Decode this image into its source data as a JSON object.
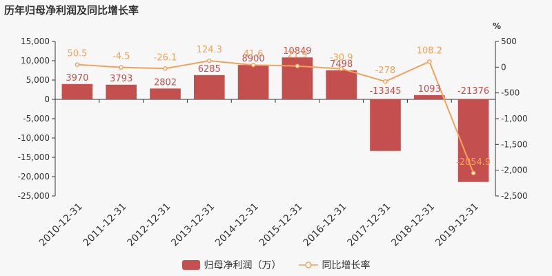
{
  "title": "历年归母净利润及同比增长率",
  "colors": {
    "bar": "#c3504e",
    "line": "#f4a259",
    "bar_label": "#c3504e",
    "line_label": "#f4a259",
    "axis_text": "#333333",
    "grid": "#e3e3e3"
  },
  "legend": {
    "bar_label": "归母净利润（万）",
    "line_label": "同比增长率"
  },
  "chart_data": {
    "type": "bar",
    "title": "历年归母净利润及同比增长率",
    "categories": [
      "2010-12-31",
      "2011-12-31",
      "2012-12-31",
      "2013-12-31",
      "2014-12-31",
      "2015-12-31",
      "2016-12-31",
      "2017-12-31",
      "2018-12-31",
      "2019-12-31"
    ],
    "series": [
      {
        "name": "归母净利润（万）",
        "type": "bar",
        "axis": "left",
        "values": [
          3970,
          3793,
          2802,
          6285,
          8900,
          10849,
          7498,
          -13345,
          1093,
          -21376
        ],
        "labels": [
          "3970",
          "3793",
          "2802",
          "6285",
          "8900",
          "10849",
          "7498",
          "-13345",
          "1093",
          "-21376"
        ]
      },
      {
        "name": "同比增长率",
        "type": "line",
        "axis": "right",
        "values": [
          50.5,
          -4.5,
          -26.1,
          124.3,
          41.6,
          21.9,
          -30.9,
          -278,
          108.2,
          -2054.9
        ],
        "labels": [
          "50.5",
          "-4.5",
          "-26.1",
          "124.3",
          "41.6",
          "21.9",
          "-30.9",
          "-278",
          "108.2",
          "-2054.9"
        ]
      }
    ],
    "y_left": {
      "lim": [
        -25000,
        15000
      ],
      "ticks": [
        15000,
        10000,
        5000,
        0,
        -5000,
        -10000,
        -15000,
        -20000,
        -25000
      ],
      "tick_labels": [
        "15,000",
        "10,000",
        "5,000",
        "0",
        "-5,000",
        "-10,000",
        "-15,000",
        "-20,000",
        "-25,000"
      ]
    },
    "y_right": {
      "unit": "%",
      "lim": [
        -2500,
        500
      ],
      "ticks": [
        500,
        0,
        -500,
        -1000,
        -1500,
        -2000,
        -2500
      ],
      "tick_labels": [
        "500",
        "0",
        "-500",
        "-1,000",
        "-1,500",
        "-2,000",
        "-2,500"
      ]
    },
    "grid": false,
    "legend_position": "bottom"
  }
}
